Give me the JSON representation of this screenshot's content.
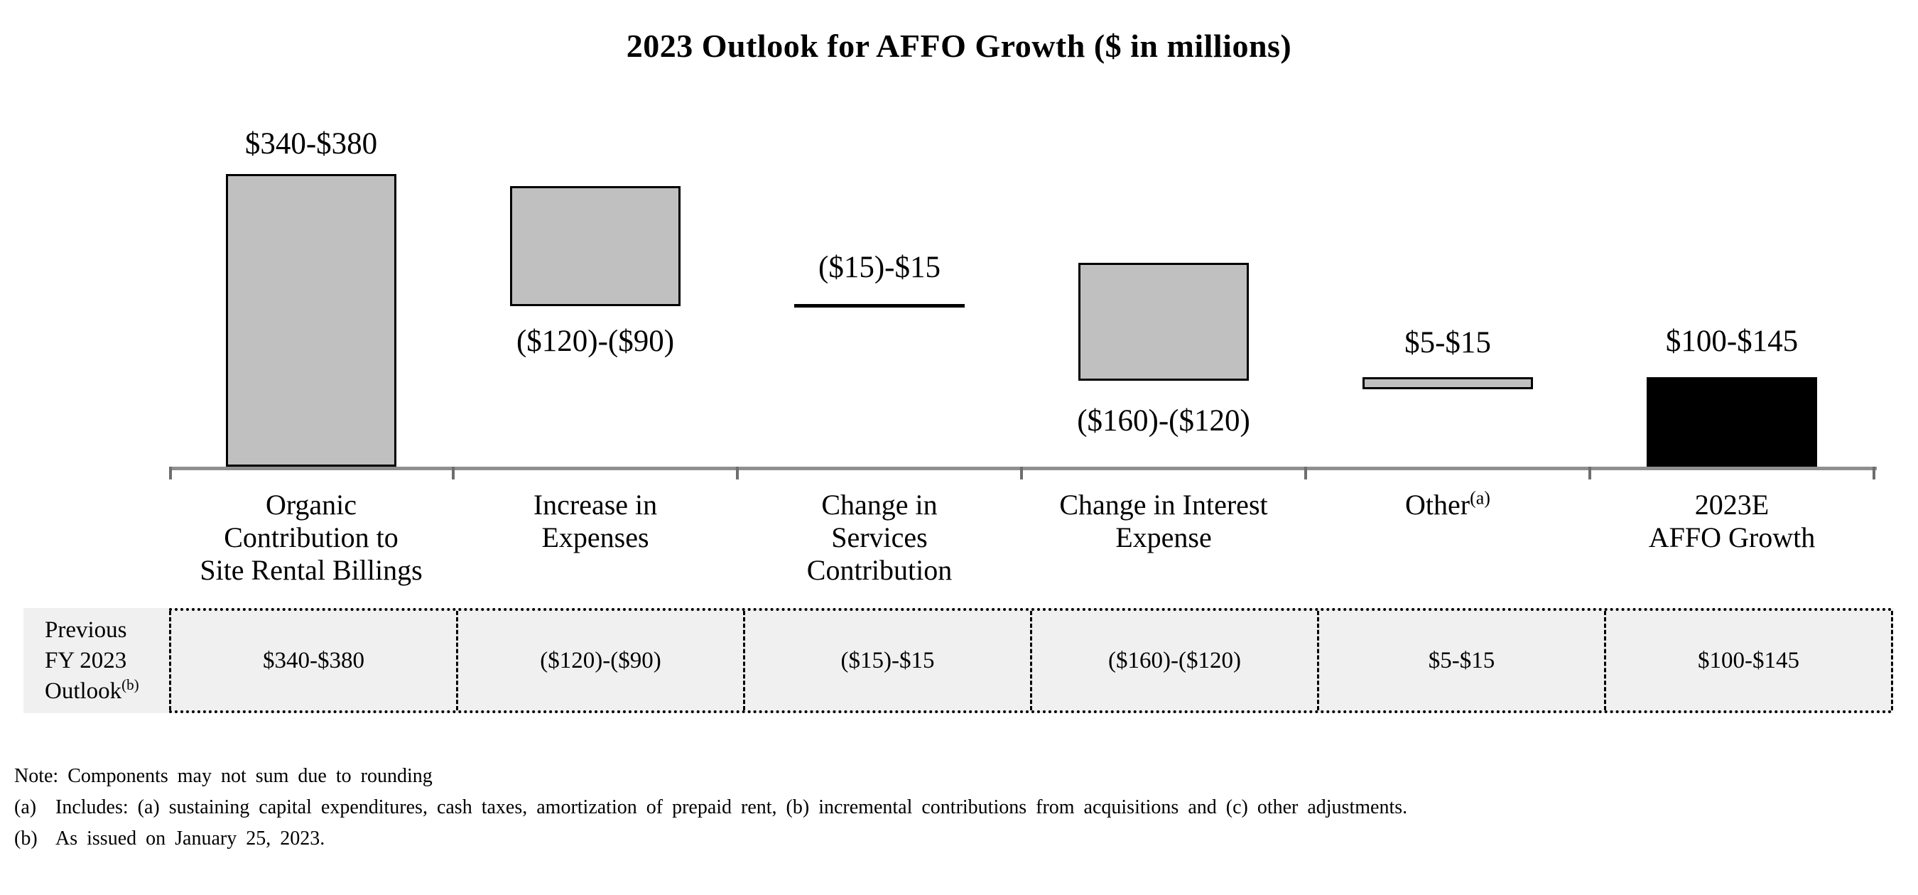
{
  "title": "2023 Outlook for AFFO Growth ($ in millions)",
  "chart_data": {
    "type": "bar",
    "variant": "waterfall",
    "title": "2023 Outlook for AFFO Growth ($ in millions)",
    "unit": "$ in millions",
    "legend": "none",
    "y_axis": "hidden",
    "baseline_value": 0,
    "categories": [
      "Organic Contribution to Site Rental Billings",
      "Increase in Expenses",
      "Change in Services Contribution",
      "Change in Interest Expense",
      "Other(a)",
      "2023E AFFO Growth"
    ],
    "bars": [
      {
        "label_lines": [
          "Organic",
          "Contribution to",
          "Site Rental Billings"
        ],
        "value_label": "$340-$380",
        "value_range": [
          340,
          380
        ],
        "direction": "increase",
        "fill": "#C0C0C0"
      },
      {
        "label_lines": [
          "Increase in",
          "Expenses"
        ],
        "value_label": "($120)-($90)",
        "value_range": [
          -120,
          -90
        ],
        "direction": "decrease",
        "fill": "#C0C0C0"
      },
      {
        "label_lines": [
          "Change in",
          "Services",
          "Contribution"
        ],
        "value_label": "($15)-$15",
        "value_range": [
          -15,
          15
        ],
        "direction": "neutral",
        "fill": "line"
      },
      {
        "label_lines": [
          "Change in Interest",
          "Expense"
        ],
        "value_label": "($160)-($120)",
        "value_range": [
          -160,
          -120
        ],
        "direction": "decrease",
        "fill": "#C0C0C0"
      },
      {
        "label_lines": [
          "Other"
        ],
        "sup": "(a)",
        "value_label": "$5-$15",
        "value_range": [
          5,
          15
        ],
        "direction": "increase",
        "fill": "#C0C0C0"
      },
      {
        "label_lines": [
          "2023E",
          "AFFO Growth"
        ],
        "value_label": "$100-$145",
        "value_range": [
          100,
          145
        ],
        "direction": "total",
        "fill": "#000000"
      }
    ]
  },
  "table": {
    "row_label_lines": [
      "Previous",
      "FY 2023",
      "Outlook"
    ],
    "row_label_sup": "(b)",
    "values": [
      "$340-$380",
      "($120)-($90)",
      "($15)-$15",
      "($160)-($120)",
      "$5-$15",
      "$100-$145"
    ]
  },
  "footnotes": {
    "note": "Note: Components may not sum due to rounding",
    "items": [
      {
        "marker": "(a)",
        "text": "Includes: (a) sustaining capital expenditures, cash taxes, amortization of prepaid rent, (b) incremental contributions from acquisitions and (c) other adjustments."
      },
      {
        "marker": "(b)",
        "text": "As issued on January 25, 2023."
      }
    ]
  },
  "colors": {
    "bar_fill": "#C0C0C0",
    "bar_border": "#000000",
    "total_bar_fill": "#000000",
    "axis_line": "#8F8F8F",
    "table_background": "#F0F0F0"
  }
}
